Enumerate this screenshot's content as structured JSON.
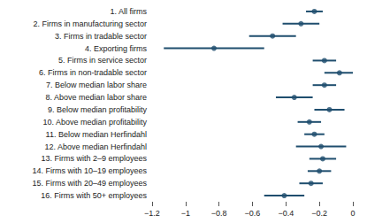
{
  "chart_data": {
    "type": "scatter",
    "orientation": "horizontal",
    "color": "#1f4e6e",
    "grid": false,
    "categories": [
      "1. All firms",
      "2. Firms in manufacturing sector",
      "3. Firms in tradable sector",
      "4. Exporting firms",
      "5. Firms in service sector",
      "6. Firms in non-tradable sector",
      "7. Below median labor share",
      "8. Above median labor share",
      "9. Below median profitability",
      "10. Above median profitability",
      "11. Below median Herfindahl",
      "12. Above median Herfindahl",
      "13. Firms with 2–9 employees",
      "14. Firms with 10–19 employees",
      "15. Firms with 20–49 employees",
      "16. Firms with 50+ employees"
    ],
    "values": [
      -0.23,
      -0.31,
      -0.48,
      -0.83,
      -0.17,
      -0.08,
      -0.17,
      -0.35,
      -0.14,
      -0.26,
      -0.23,
      -0.19,
      -0.18,
      -0.2,
      -0.25,
      -0.41
    ],
    "lower": [
      -0.28,
      -0.42,
      -0.62,
      -1.13,
      -0.24,
      -0.17,
      -0.24,
      -0.46,
      -0.23,
      -0.33,
      -0.29,
      -0.34,
      -0.26,
      -0.27,
      -0.32,
      -0.53
    ],
    "upper": [
      -0.18,
      -0.2,
      -0.34,
      -0.53,
      -0.1,
      0.02,
      -0.1,
      -0.24,
      -0.05,
      -0.19,
      -0.17,
      -0.04,
      -0.1,
      -0.13,
      -0.18,
      -0.29
    ],
    "xlim": [
      -1.2,
      0
    ],
    "xticks": [
      {
        "value": -1.2,
        "label": "−1.2"
      },
      {
        "value": -1,
        "label": "−1"
      },
      {
        "value": -0.8,
        "label": "−0.8"
      },
      {
        "value": -0.6,
        "label": "−0.6"
      },
      {
        "value": -0.4,
        "label": "−0.4"
      },
      {
        "value": -0.2,
        "label": "−0.2"
      },
      0
    ]
  }
}
